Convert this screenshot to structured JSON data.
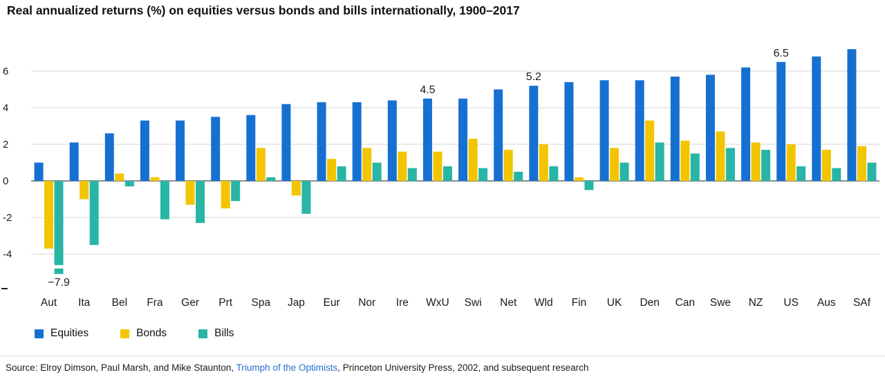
{
  "title": "Real annualized returns (%) on equities versus bonds and bills internationally, 1900–2017",
  "chart_data": {
    "type": "bar",
    "title": "Real annualized returns (%) on equities versus bonds and bills internationally, 1900–2017",
    "categories": [
      "Aut",
      "Ita",
      "Bel",
      "Fra",
      "Ger",
      "Prt",
      "Spa",
      "Jap",
      "Eur",
      "Nor",
      "Ire",
      "WxU",
      "Swi",
      "Net",
      "Wld",
      "Fin",
      "UK",
      "Den",
      "Can",
      "Swe",
      "NZ",
      "US",
      "Aus",
      "SAf"
    ],
    "series": [
      {
        "name": "Equities",
        "color": "#1670d2",
        "values": [
          1.0,
          2.1,
          2.6,
          3.3,
          3.3,
          3.5,
          3.6,
          4.2,
          4.3,
          4.3,
          4.4,
          4.5,
          4.5,
          5.0,
          5.2,
          5.4,
          5.5,
          5.5,
          5.7,
          5.8,
          6.2,
          6.5,
          6.8,
          7.2
        ]
      },
      {
        "name": "Bonds",
        "color": "#f2c500",
        "values": [
          -3.7,
          -1.0,
          0.4,
          0.2,
          -1.3,
          -1.5,
          1.8,
          -0.8,
          1.2,
          1.8,
          1.6,
          1.6,
          2.3,
          1.7,
          2.0,
          0.2,
          1.8,
          3.3,
          2.2,
          2.7,
          2.1,
          2.0,
          1.7,
          1.9
        ]
      },
      {
        "name": "Bills",
        "color": "#29b5a5",
        "values": [
          -7.9,
          -3.5,
          -0.3,
          -2.1,
          -2.3,
          -1.1,
          0.2,
          -1.8,
          0.8,
          1.0,
          0.7,
          0.8,
          0.7,
          0.5,
          0.8,
          -0.5,
          1.0,
          2.1,
          1.5,
          1.8,
          1.7,
          0.8,
          0.7,
          1.0
        ]
      }
    ],
    "xlabel": "",
    "ylabel": "",
    "y_ticks": [
      6,
      4,
      2,
      0,
      -2,
      -4
    ],
    "ylim": [
      -5.6,
      7.6
    ],
    "clip_min": -4.6,
    "grid": true,
    "legend_position": "bottom-left",
    "annotations": [
      {
        "series": "Equities",
        "category": "WxU",
        "text": "4.5",
        "position": "above"
      },
      {
        "series": "Equities",
        "category": "Wld",
        "text": "5.2",
        "position": "above"
      },
      {
        "series": "Equities",
        "category": "US",
        "text": "6.5",
        "position": "above"
      },
      {
        "series": "Bills",
        "category": "Aut",
        "text": "−7.9",
        "position": "below",
        "clipped": true
      }
    ]
  },
  "legend": {
    "items": [
      {
        "label": "Equities",
        "color": "#1670d2"
      },
      {
        "label": "Bonds",
        "color": "#f2c500"
      },
      {
        "label": "Bills",
        "color": "#29b5a5"
      }
    ]
  },
  "source": {
    "prefix": "Source: Elroy Dimson, Paul Marsh, and Mike Staunton, ",
    "link": "Triumph of the Optimists",
    "suffix": ", Princeton University Press, 2002, and subsequent research",
    "link_color": "#2470cf"
  }
}
